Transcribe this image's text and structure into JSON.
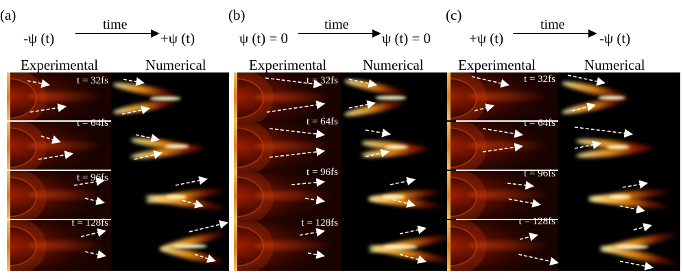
{
  "panels": [
    {
      "label": "(a)",
      "from": "-ψ (t)",
      "time": "time",
      "to": "+ψ (t)",
      "exp_title": "Experimental",
      "num_title": "Numerical",
      "times": [
        "t = 32fs",
        "t = 64fs",
        "t = 96fs",
        "t = 128fs"
      ]
    },
    {
      "label": "(b)",
      "from": "ψ (t) = 0",
      "time": "time",
      "to": "ψ (t) = 0",
      "exp_title": "Experimental",
      "num_title": "Numerical",
      "times": [
        "t = 32fs",
        "t = 64fs",
        "t = 96fs",
        "t = 128fs"
      ]
    },
    {
      "label": "(c)",
      "from": "+ψ (t)",
      "time": "time",
      "to": "-ψ (t)",
      "exp_title": "Experimental",
      "num_title": "Numerical",
      "times": [
        "t = 32fs",
        "t = 64fs",
        "t = 96fs",
        "t = 128fs"
      ]
    }
  ]
}
